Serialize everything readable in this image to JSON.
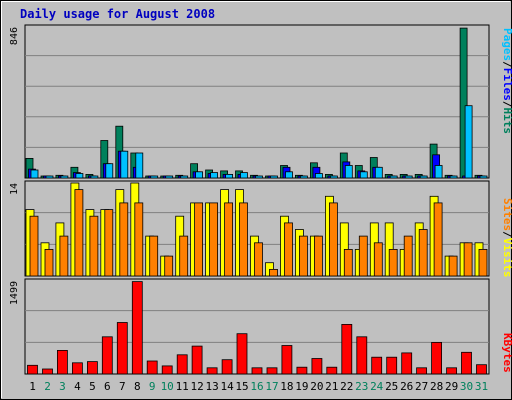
{
  "title": "Daily usage for August 2008",
  "colors": {
    "background": "#c0c0c0",
    "title": "#0000c0",
    "hits": "#00805c",
    "files": "#0000ff",
    "pages": "#00c0ff",
    "visits": "#ffff00",
    "sites": "#ff8000",
    "kbytes": "#ff0000",
    "weekday_label": "#000000",
    "weekend_label": "#00805c"
  },
  "legends": {
    "hits": "Hits",
    "files": "Files",
    "pages": "Pages",
    "visits": "Visits",
    "sites": "Sites",
    "kbytes": "KBytes",
    "separator": "/"
  },
  "chart_data": {
    "type": "bar",
    "title": "Daily usage for August 2008",
    "categories": [
      "1",
      "2",
      "3",
      "4",
      "5",
      "6",
      "7",
      "8",
      "9",
      "10",
      "11",
      "12",
      "13",
      "14",
      "15",
      "16",
      "17",
      "18",
      "19",
      "20",
      "21",
      "22",
      "23",
      "24",
      "25",
      "26",
      "27",
      "28",
      "29",
      "30",
      "31"
    ],
    "weekend_days": [
      "2",
      "3",
      "9",
      "10",
      "16",
      "17",
      "23",
      "24",
      "30",
      "31"
    ],
    "panels": [
      {
        "name": "hits-files-pages",
        "ymax_label": "846",
        "ylim": [
          0,
          846
        ],
        "series": [
          {
            "name": "Hits",
            "values": [
              110,
              10,
              15,
              60,
              20,
              210,
              290,
              140,
              10,
              10,
              15,
              80,
              45,
              40,
              40,
              15,
              10,
              70,
              15,
              85,
              20,
              140,
              70,
              115,
              20,
              20,
              20,
              190,
              15,
              840,
              15
            ]
          },
          {
            "name": "Files",
            "values": [
              50,
              5,
              8,
              30,
              12,
              80,
              150,
              60,
              5,
              5,
              8,
              35,
              25,
              20,
              20,
              8,
              5,
              60,
              8,
              60,
              10,
              90,
              40,
              60,
              8,
              10,
              10,
              130,
              8,
              5,
              8
            ]
          },
          {
            "name": "Pages",
            "values": [
              45,
              5,
              8,
              25,
              10,
              80,
              150,
              140,
              5,
              5,
              8,
              35,
              30,
              20,
              30,
              8,
              5,
              35,
              8,
              25,
              10,
              70,
              35,
              60,
              8,
              10,
              10,
              70,
              8,
              405,
              8
            ]
          }
        ]
      },
      {
        "name": "visits-sites",
        "ymax_label": "14",
        "ylim": [
          0,
          14
        ],
        "series": [
          {
            "name": "Visits",
            "values": [
              10,
              5,
              8,
              14,
              10,
              10,
              13,
              14,
              6,
              3,
              9,
              11,
              11,
              13,
              13,
              6,
              2,
              9,
              7,
              6,
              12,
              8,
              4,
              8,
              8,
              4,
              8,
              12,
              3,
              5,
              5
            ]
          },
          {
            "name": "Sites",
            "values": [
              9,
              4,
              6,
              13,
              9,
              10,
              11,
              11,
              6,
              3,
              6,
              11,
              11,
              11,
              11,
              5,
              1,
              8,
              6,
              6,
              11,
              4,
              6,
              5,
              4,
              6,
              7,
              11,
              3,
              5,
              4
            ]
          }
        ]
      },
      {
        "name": "kbytes",
        "ymax_label": "1499",
        "ylim": [
          0,
          1499
        ],
        "series": [
          {
            "name": "KBytes",
            "values": [
              140,
              80,
              380,
              180,
              200,
              600,
              830,
              1490,
              210,
              130,
              310,
              450,
              100,
              230,
              650,
              100,
              100,
              460,
              110,
              250,
              110,
              800,
              600,
              270,
              270,
              340,
              100,
              510,
              100,
              350,
              150
            ]
          }
        ]
      }
    ],
    "grid": true
  }
}
